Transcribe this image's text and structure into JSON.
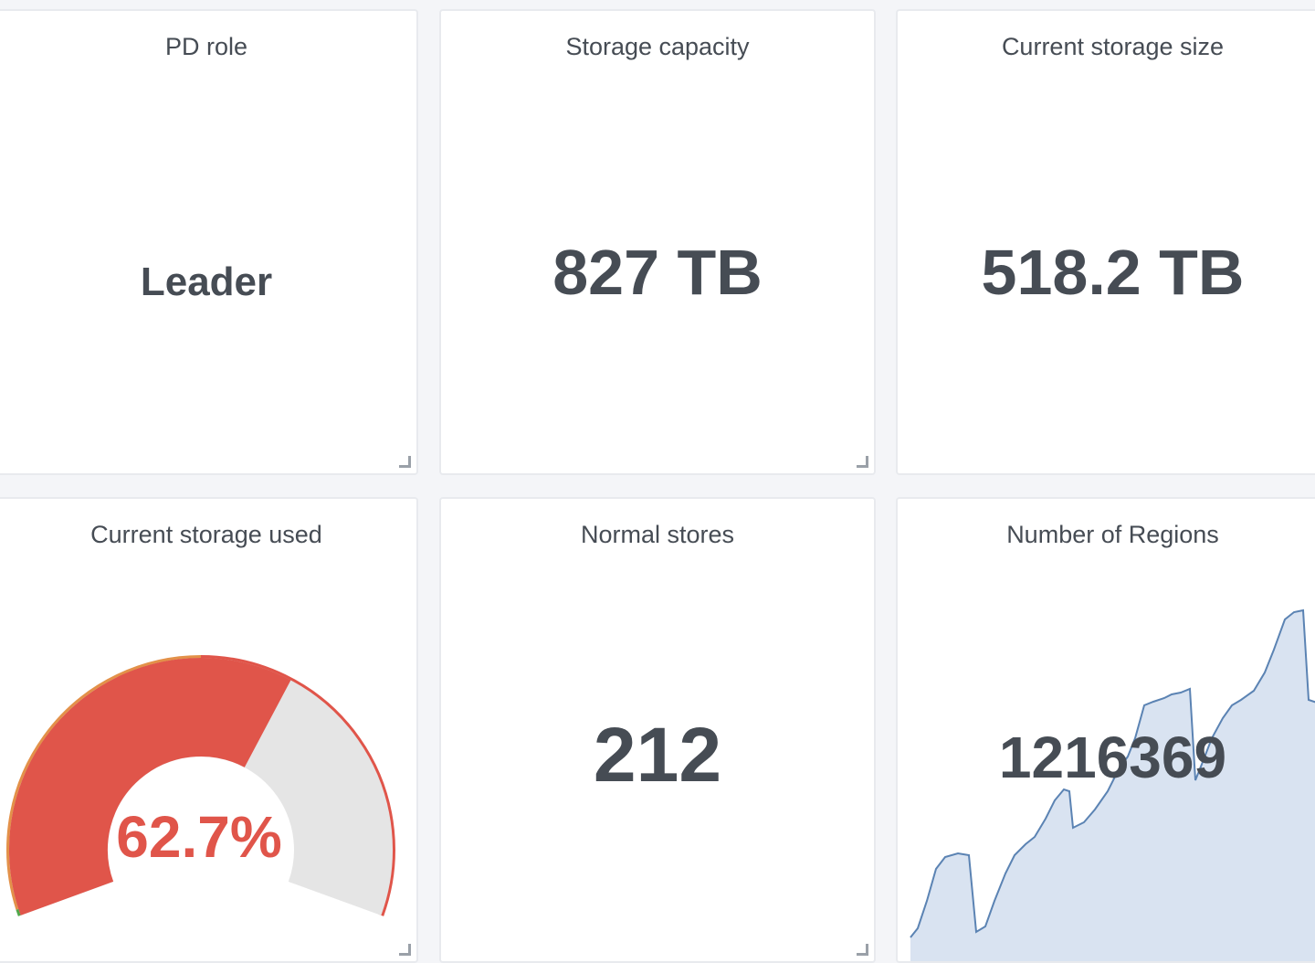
{
  "colors": {
    "text": "#464c54",
    "gauge_red": "#e0554a",
    "gauge_orange": "#e39149",
    "gauge_green": "#50a84a",
    "gauge_track": "#e5e5e5",
    "spark_line": "#5b83b3",
    "spark_fill": "#d9e3f1"
  },
  "panels": {
    "pd_role": {
      "title": "PD role",
      "value": "Leader"
    },
    "storage_capacity": {
      "title": "Storage capacity",
      "value": "827 TB"
    },
    "current_storage_size": {
      "title": "Current storage size",
      "value": "518.2 TB"
    },
    "current_storage_used": {
      "title": "Current storage used",
      "value": "62.7%",
      "percent": 62.7
    },
    "normal_stores": {
      "title": "Normal stores",
      "value": "212"
    },
    "number_of_regions": {
      "title": "Number of Regions",
      "value": "1216369"
    }
  },
  "icons": {
    "resize_handle": "resize-corner-icon"
  }
}
